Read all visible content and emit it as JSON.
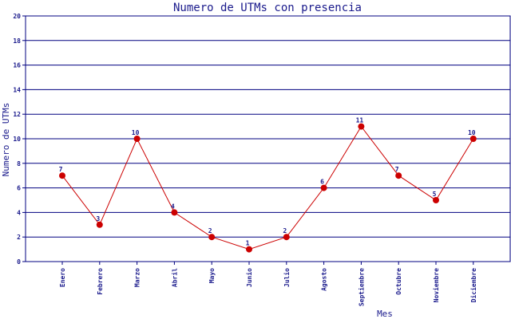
{
  "chart_data": {
    "type": "line",
    "title": "Numero de UTMs con presencia",
    "xlabel": "Mes",
    "ylabel": "Numero de UTMs",
    "categories": [
      "Enero",
      "Febrero",
      "Marzo",
      "Abril",
      "Mayo",
      "Junio",
      "Julio",
      "Agosto",
      "Septiembre",
      "Octubre",
      "Noviembre",
      "Diciembre"
    ],
    "values": [
      7,
      3,
      10,
      4,
      2,
      1,
      2,
      6,
      11,
      7,
      5,
      10
    ],
    "ylim": [
      0,
      20
    ],
    "yticks": [
      "0",
      "2",
      "4",
      "6",
      "8",
      "10",
      "12",
      "14",
      "16",
      "18",
      "20"
    ],
    "grid": true,
    "colors": {
      "line": "#cc0000",
      "marker": "#cc0000",
      "grid": "#000080",
      "text": "#1a1a8c"
    }
  }
}
